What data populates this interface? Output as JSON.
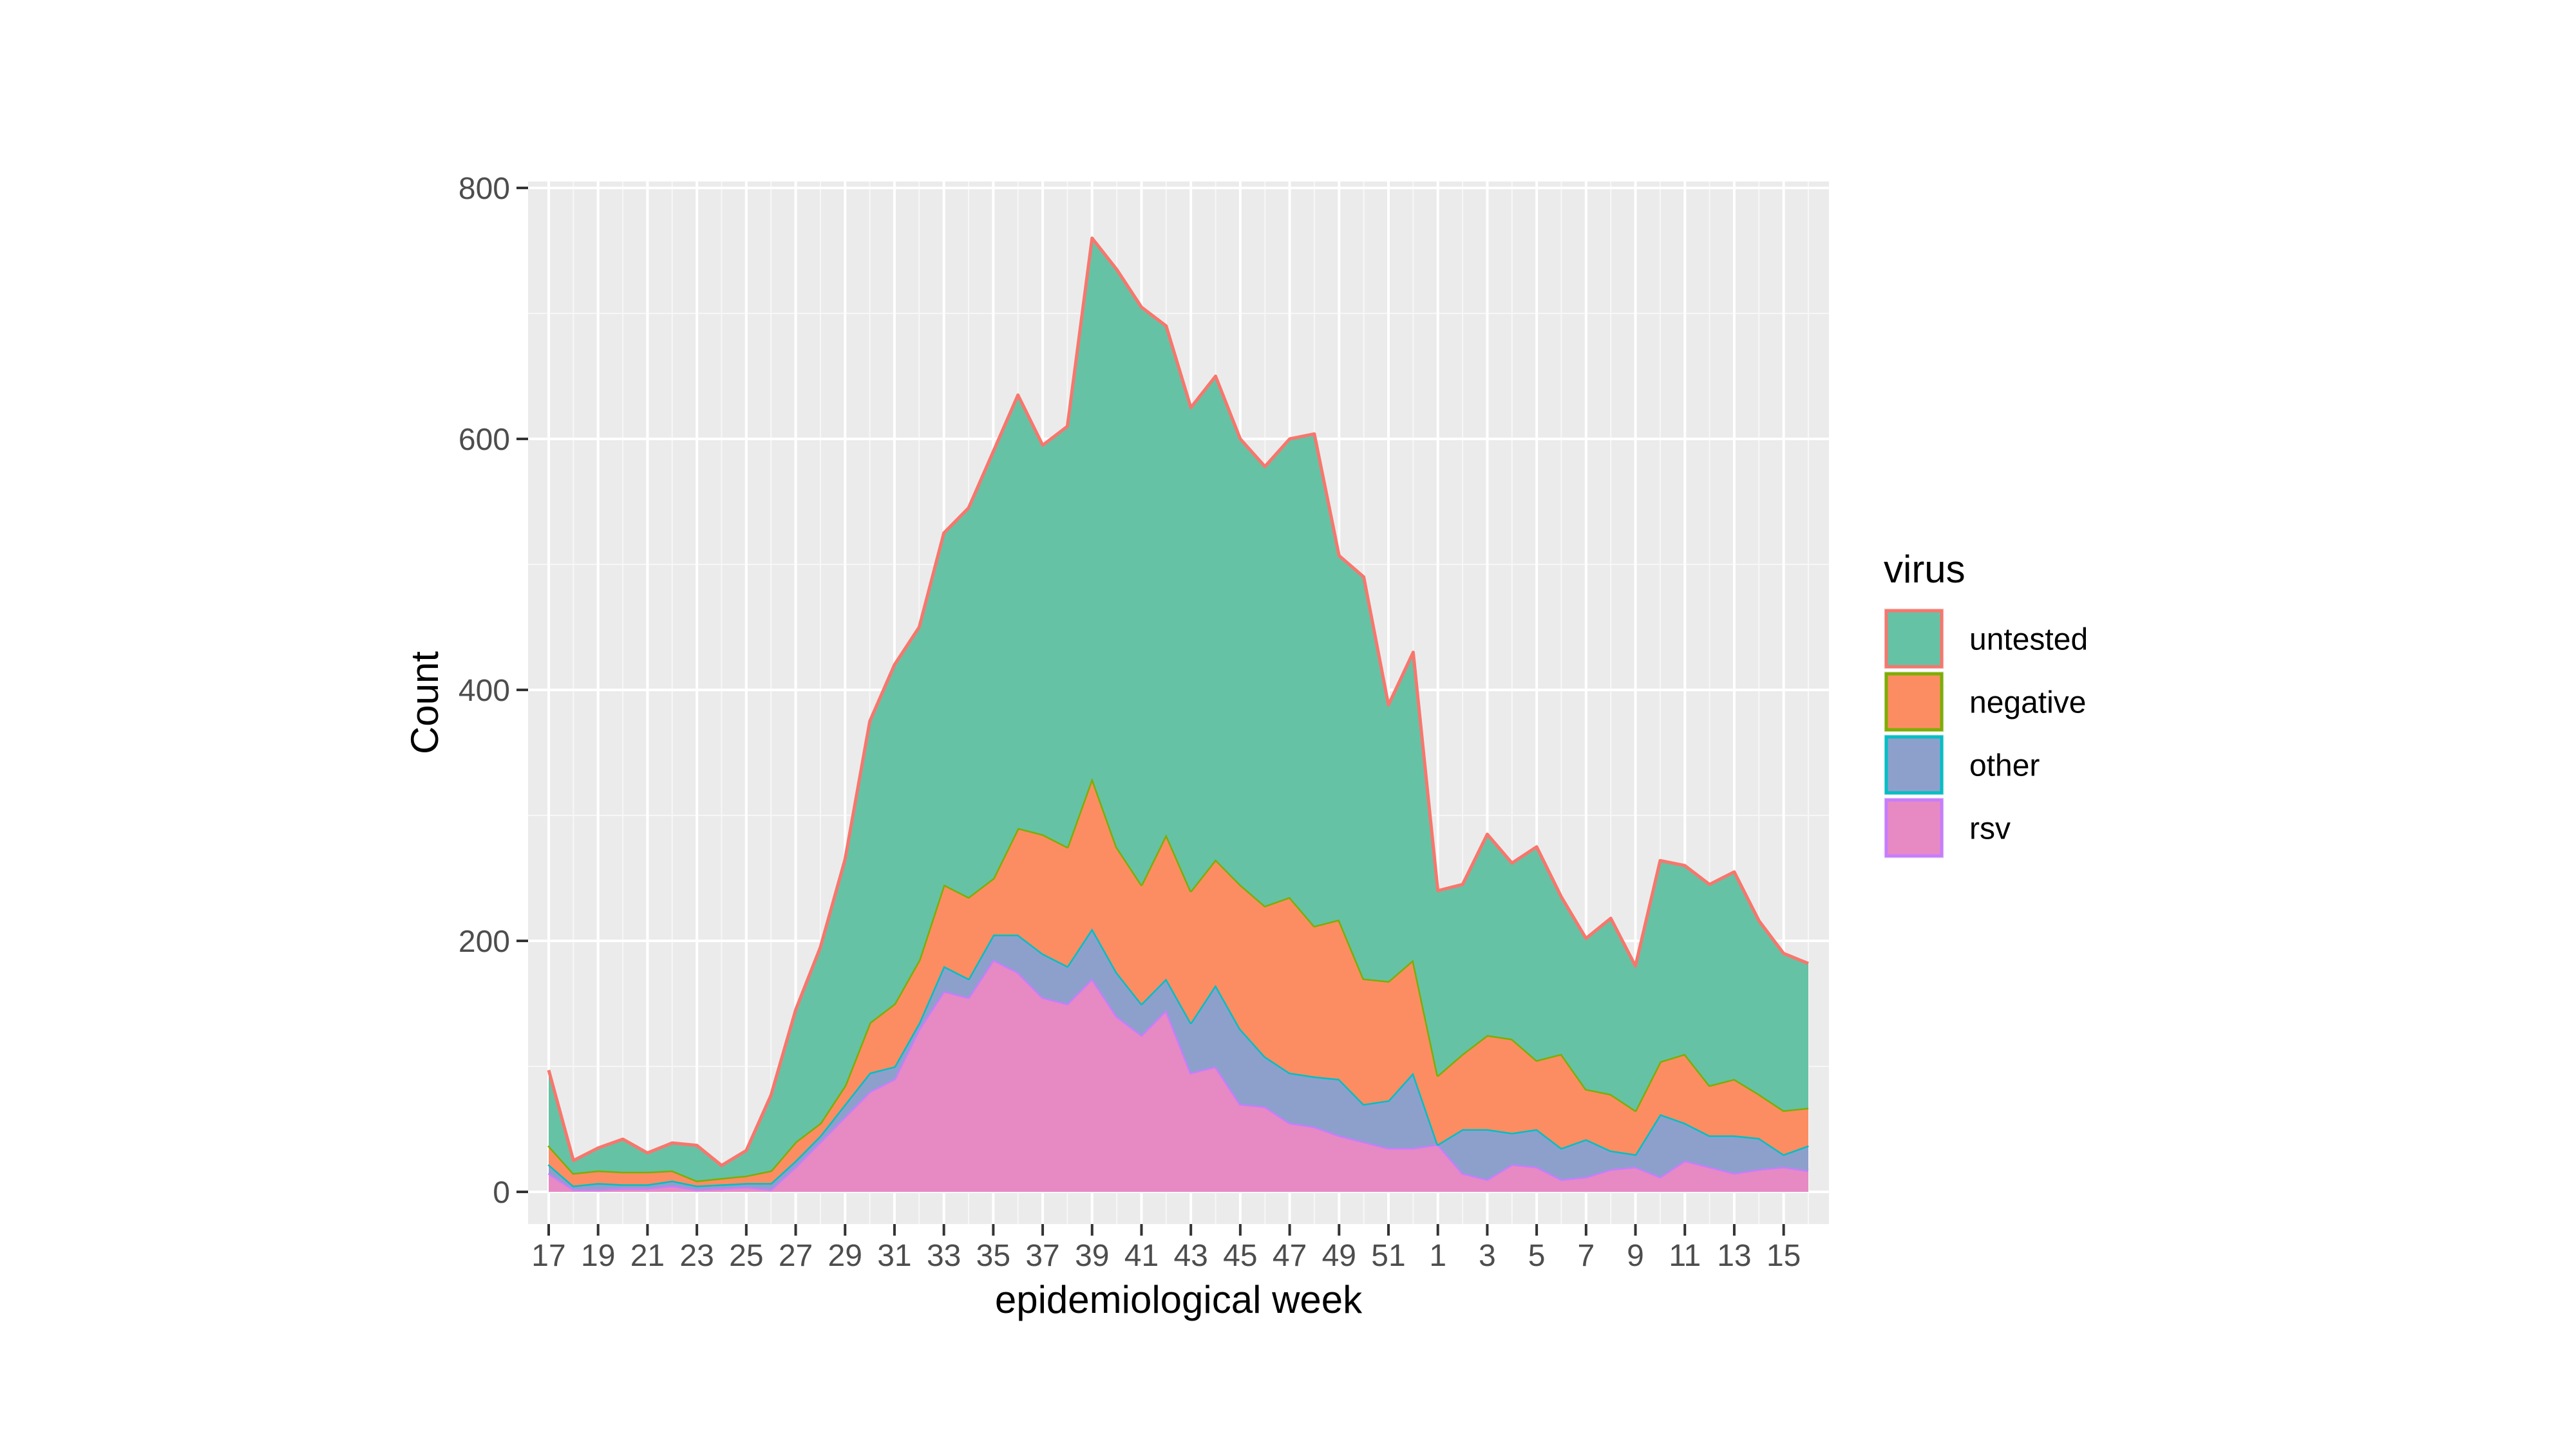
{
  "chart_data": {
    "type": "area",
    "stacked": true,
    "title": "",
    "xlabel": "epidemiological week",
    "ylabel": "Count",
    "ylim": [
      0,
      800
    ],
    "yticks": [
      0,
      200,
      400,
      600,
      800
    ],
    "xtick_labels": [
      "17",
      "19",
      "21",
      "23",
      "25",
      "27",
      "29",
      "31",
      "33",
      "35",
      "37",
      "39",
      "41",
      "43",
      "45",
      "47",
      "49",
      "51",
      "1",
      "3",
      "5",
      "7",
      "9",
      "11",
      "13",
      "15"
    ],
    "x": [
      "17",
      "18",
      "19",
      "20",
      "21",
      "22",
      "23",
      "24",
      "25",
      "26",
      "27",
      "28",
      "29",
      "30",
      "31",
      "32",
      "33",
      "34",
      "35",
      "36",
      "37",
      "38",
      "39",
      "40",
      "41",
      "42",
      "43",
      "44",
      "45",
      "46",
      "47",
      "48",
      "49",
      "50",
      "51",
      "52",
      "1",
      "2",
      "3",
      "4",
      "5",
      "6",
      "7",
      "8",
      "9",
      "10",
      "11",
      "12",
      "13",
      "14",
      "15",
      "16"
    ],
    "grid": true,
    "background": "#ebebeb",
    "legend": {
      "title": "virus",
      "position": "right"
    },
    "series": [
      {
        "name": "rsv",
        "fill": "#e78ac3",
        "stroke": "#c77cff",
        "values": [
          15,
          2,
          2,
          3,
          3,
          5,
          2,
          3,
          4,
          2,
          20,
          40,
          60,
          80,
          90,
          130,
          160,
          155,
          185,
          175,
          155,
          150,
          170,
          140,
          125,
          145,
          95,
          100,
          70,
          68,
          55,
          52,
          45,
          40,
          35,
          35,
          38,
          15,
          10,
          22,
          20,
          10,
          12,
          18,
          20,
          12,
          25,
          20,
          15,
          18,
          20,
          17
        ]
      },
      {
        "name": "other",
        "fill": "#8da0cb",
        "stroke": "#00bfc4",
        "values": [
          7,
          3,
          5,
          3,
          3,
          4,
          3,
          3,
          3,
          5,
          5,
          5,
          10,
          15,
          10,
          5,
          20,
          15,
          20,
          30,
          35,
          30,
          40,
          35,
          25,
          25,
          40,
          65,
          60,
          40,
          40,
          40,
          45,
          30,
          38,
          60,
          0,
          35,
          40,
          25,
          30,
          25,
          30,
          15,
          10,
          50,
          30,
          25,
          30,
          25,
          10,
          20
        ]
      },
      {
        "name": "negative",
        "fill": "#fc8d62",
        "stroke": "#7cae00",
        "values": [
          15,
          10,
          10,
          10,
          10,
          8,
          4,
          5,
          6,
          10,
          15,
          10,
          15,
          40,
          50,
          50,
          65,
          65,
          45,
          85,
          95,
          95,
          120,
          100,
          95,
          115,
          105,
          100,
          115,
          120,
          140,
          120,
          127,
          100,
          95,
          90,
          55,
          60,
          75,
          75,
          55,
          75,
          40,
          45,
          35,
          42,
          55,
          40,
          45,
          35,
          35,
          30
        ]
      },
      {
        "name": "untested",
        "fill": "#66c2a5",
        "stroke": "#f8766d",
        "values": [
          60,
          10,
          18,
          26,
          15,
          22,
          28,
          10,
          20,
          60,
          105,
          140,
          180,
          240,
          270,
          265,
          280,
          310,
          340,
          345,
          310,
          335,
          430,
          460,
          460,
          405,
          385,
          385,
          355,
          350,
          365,
          392,
          290,
          320,
          220,
          245,
          147,
          135,
          160,
          140,
          170,
          125,
          120,
          140,
          115,
          160,
          150,
          160,
          165,
          138,
          125,
          115
        ]
      }
    ]
  }
}
